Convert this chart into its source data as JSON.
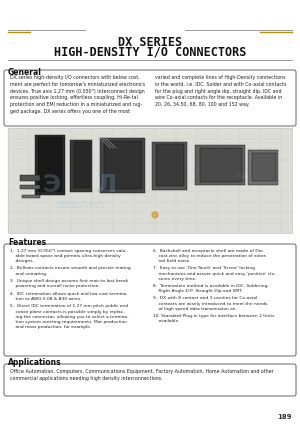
{
  "title_line1": "DX SERIES",
  "title_line2": "HIGH-DENSITY I/O CONNECTORS",
  "page_bg": "#ffffff",
  "section_general_title": "General",
  "general_text_left": "DX series high-density I/O connectors with below cost,\nment are perfect for tomorrow's miniaturized electronics\ndevices. True axis 1.27 mm (0.050\") interconnect design\nensures positive locking, effortless coupling, Hi-Re-tal\nprotection and EMI reduction in a miniaturized and rug-\nged package. DX series offers you one of the most",
  "general_text_right": "varied and complete lines of High-Density connections\nin the world, i.e. IDC. Solder and with Co-axial contacts\nfor the plug and right angle dip, straight dip, IDC and\nwire Co-axial contacts for the receptacle. Available in\n20, 26, 34,50, 68, 80, 100 and 152 way.",
  "features_title": "Features",
  "features_left": [
    "1.  1.27 mm (0.050\") contact spacing conserves valu-\n    able board space and permits ultra-high density\n    designs.",
    "2.  Bellows contacts ensure smooth and precise mating\n    and unmating.",
    "3.  Unique shell design assures first mair-to-last break\n    powering and overall noise protection.",
    "4.  IDC termination allows quick and low cost termina-\n    tion to AWG 0.08 & B30 wires.",
    "5.  Direct IDC termination of 1.27 mm pitch public and\n    coaxe plane contacts is possible simply by replac-\n    ing the connector, allowing you to select a termina-\n    tion system meeting requirements. Mat production\n    and mass production, for example."
  ],
  "features_right": [
    "6.  Backshell and receptacle shell are made of Die-\n    cast zinc alloy to reduce the penetration of exter-\n    nal field noise.",
    "7.  Easy to use 'One-Touch' and 'Screw' locking\n    mechanisms and assure quick and easy 'positive' clo-\n    sures every time.",
    "8.  Termination method is available in IDC, Soldering,\n    Right Angle D.P, Straight Dip and SMT.",
    "9.  DX with 8 contact and 3 cavities for Co-axial\n    contacts are wisely introduced to meet the needs\n    of high speed data transmission on.",
    "10. Standard Plug-in type for interface between 2 Units\n    available."
  ],
  "apps_title": "Applications",
  "apps_text": "Office Automation, Computers, Communications Equipment, Factory Automation, Home Automation and other\ncommercial applications needing high density interconnections.",
  "page_number": "189",
  "header_line_color": "#999999",
  "box_border_color": "#666666"
}
